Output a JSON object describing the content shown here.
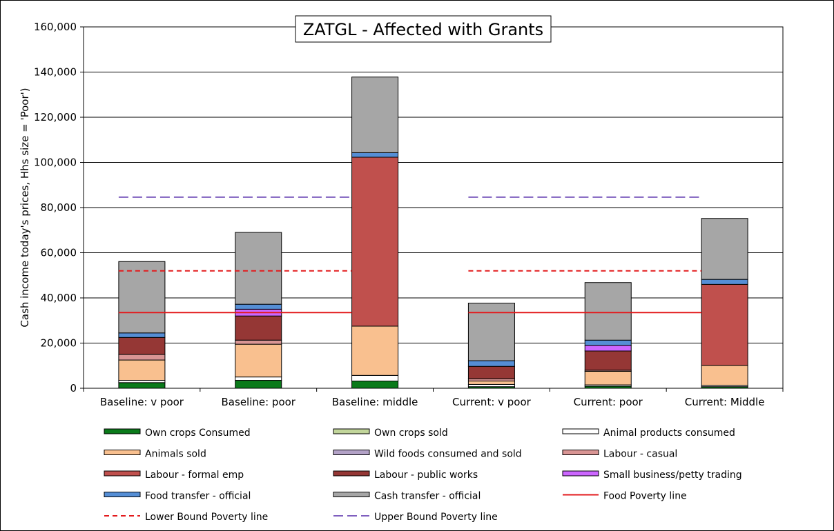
{
  "chart_data": {
    "type": "bar",
    "stacked": true,
    "title": "ZATGL - Affected with Grants",
    "ylabel": "Cash income today's prices, Hhs size = 'Poor')",
    "xlabel": "",
    "ylim": [
      0,
      160000
    ],
    "yticks": [
      0,
      20000,
      40000,
      60000,
      80000,
      100000,
      120000,
      140000,
      160000
    ],
    "ytick_labels": [
      "0",
      "20,000",
      "40,000",
      "60,000",
      "80,000",
      "100,000",
      "120,000",
      "140,000",
      "160,000"
    ],
    "grid": true,
    "legend_position": "bottom",
    "categories": [
      "Baseline: v poor",
      "Baseline: poor",
      "Baseline: middle",
      "Current: v poor",
      "Current: poor",
      "Current: Middle"
    ],
    "series": [
      {
        "name": "Own crops Consumed",
        "color": "#0a7a1a",
        "values": [
          2500,
          3500,
          3200,
          700,
          900,
          700
        ]
      },
      {
        "name": "Own crops sold",
        "color": "#c2d69b",
        "values": [
          0,
          0,
          0,
          0,
          0,
          0
        ]
      },
      {
        "name": "Animal products consumed",
        "color": "#ffffff",
        "values": [
          1000,
          1500,
          2500,
          1000,
          600,
          600
        ]
      },
      {
        "name": "Animals sold",
        "color": "#f9c08f",
        "values": [
          9000,
          14500,
          21800,
          1500,
          6000,
          8800
        ]
      },
      {
        "name": "Wild foods consumed and sold",
        "color": "#b3a2c7",
        "values": [
          0,
          0,
          0,
          0,
          0,
          0
        ]
      },
      {
        "name": "Labour - casual",
        "color": "#d99594",
        "values": [
          2500,
          1800,
          0,
          1000,
          500,
          0
        ]
      },
      {
        "name": "Labour - formal emp",
        "color": "#c0504d",
        "values": [
          0,
          0,
          74800,
          0,
          0,
          35900
        ]
      },
      {
        "name": "Labour - public works",
        "color": "#953735",
        "values": [
          7500,
          10700,
          0,
          5500,
          8500,
          0
        ]
      },
      {
        "name": "Small business/petty trading",
        "color": "#cc66ff",
        "values": [
          0,
          3000,
          0,
          0,
          2500,
          0
        ]
      },
      {
        "name": "Food transfer - official",
        "color": "#558ed5",
        "values": [
          2000,
          2200,
          2000,
          2500,
          2300,
          2200
        ]
      },
      {
        "name": "Cash transfer - official",
        "color": "#a6a6a6",
        "values": [
          31600,
          31800,
          33500,
          25500,
          25500,
          27000
        ]
      }
    ],
    "lines": [
      {
        "name": "Food Poverty line",
        "color": "#e31a1c",
        "style": "solid",
        "segments": [
          {
            "from": "Baseline: v poor",
            "to": "Baseline: middle",
            "value": 33500
          },
          {
            "from": "Current: v poor",
            "to": "Current: Middle",
            "value": 33500
          }
        ]
      },
      {
        "name": "Lower Bound Poverty line",
        "color": "#e31a1c",
        "style": "dashed",
        "segments": [
          {
            "from": "Baseline: v poor",
            "to": "Baseline: middle",
            "value": 52000
          },
          {
            "from": "Current: v poor",
            "to": "Current: Middle",
            "value": 52000
          }
        ]
      },
      {
        "name": "Upper Bound Poverty line",
        "color": "#7f5fbf",
        "style": "dashed",
        "segments": [
          {
            "from": "Baseline: v poor",
            "to": "Baseline: middle",
            "value": 84600
          },
          {
            "from": "Current: v poor",
            "to": "Current: Middle",
            "value": 84600
          }
        ]
      }
    ]
  }
}
